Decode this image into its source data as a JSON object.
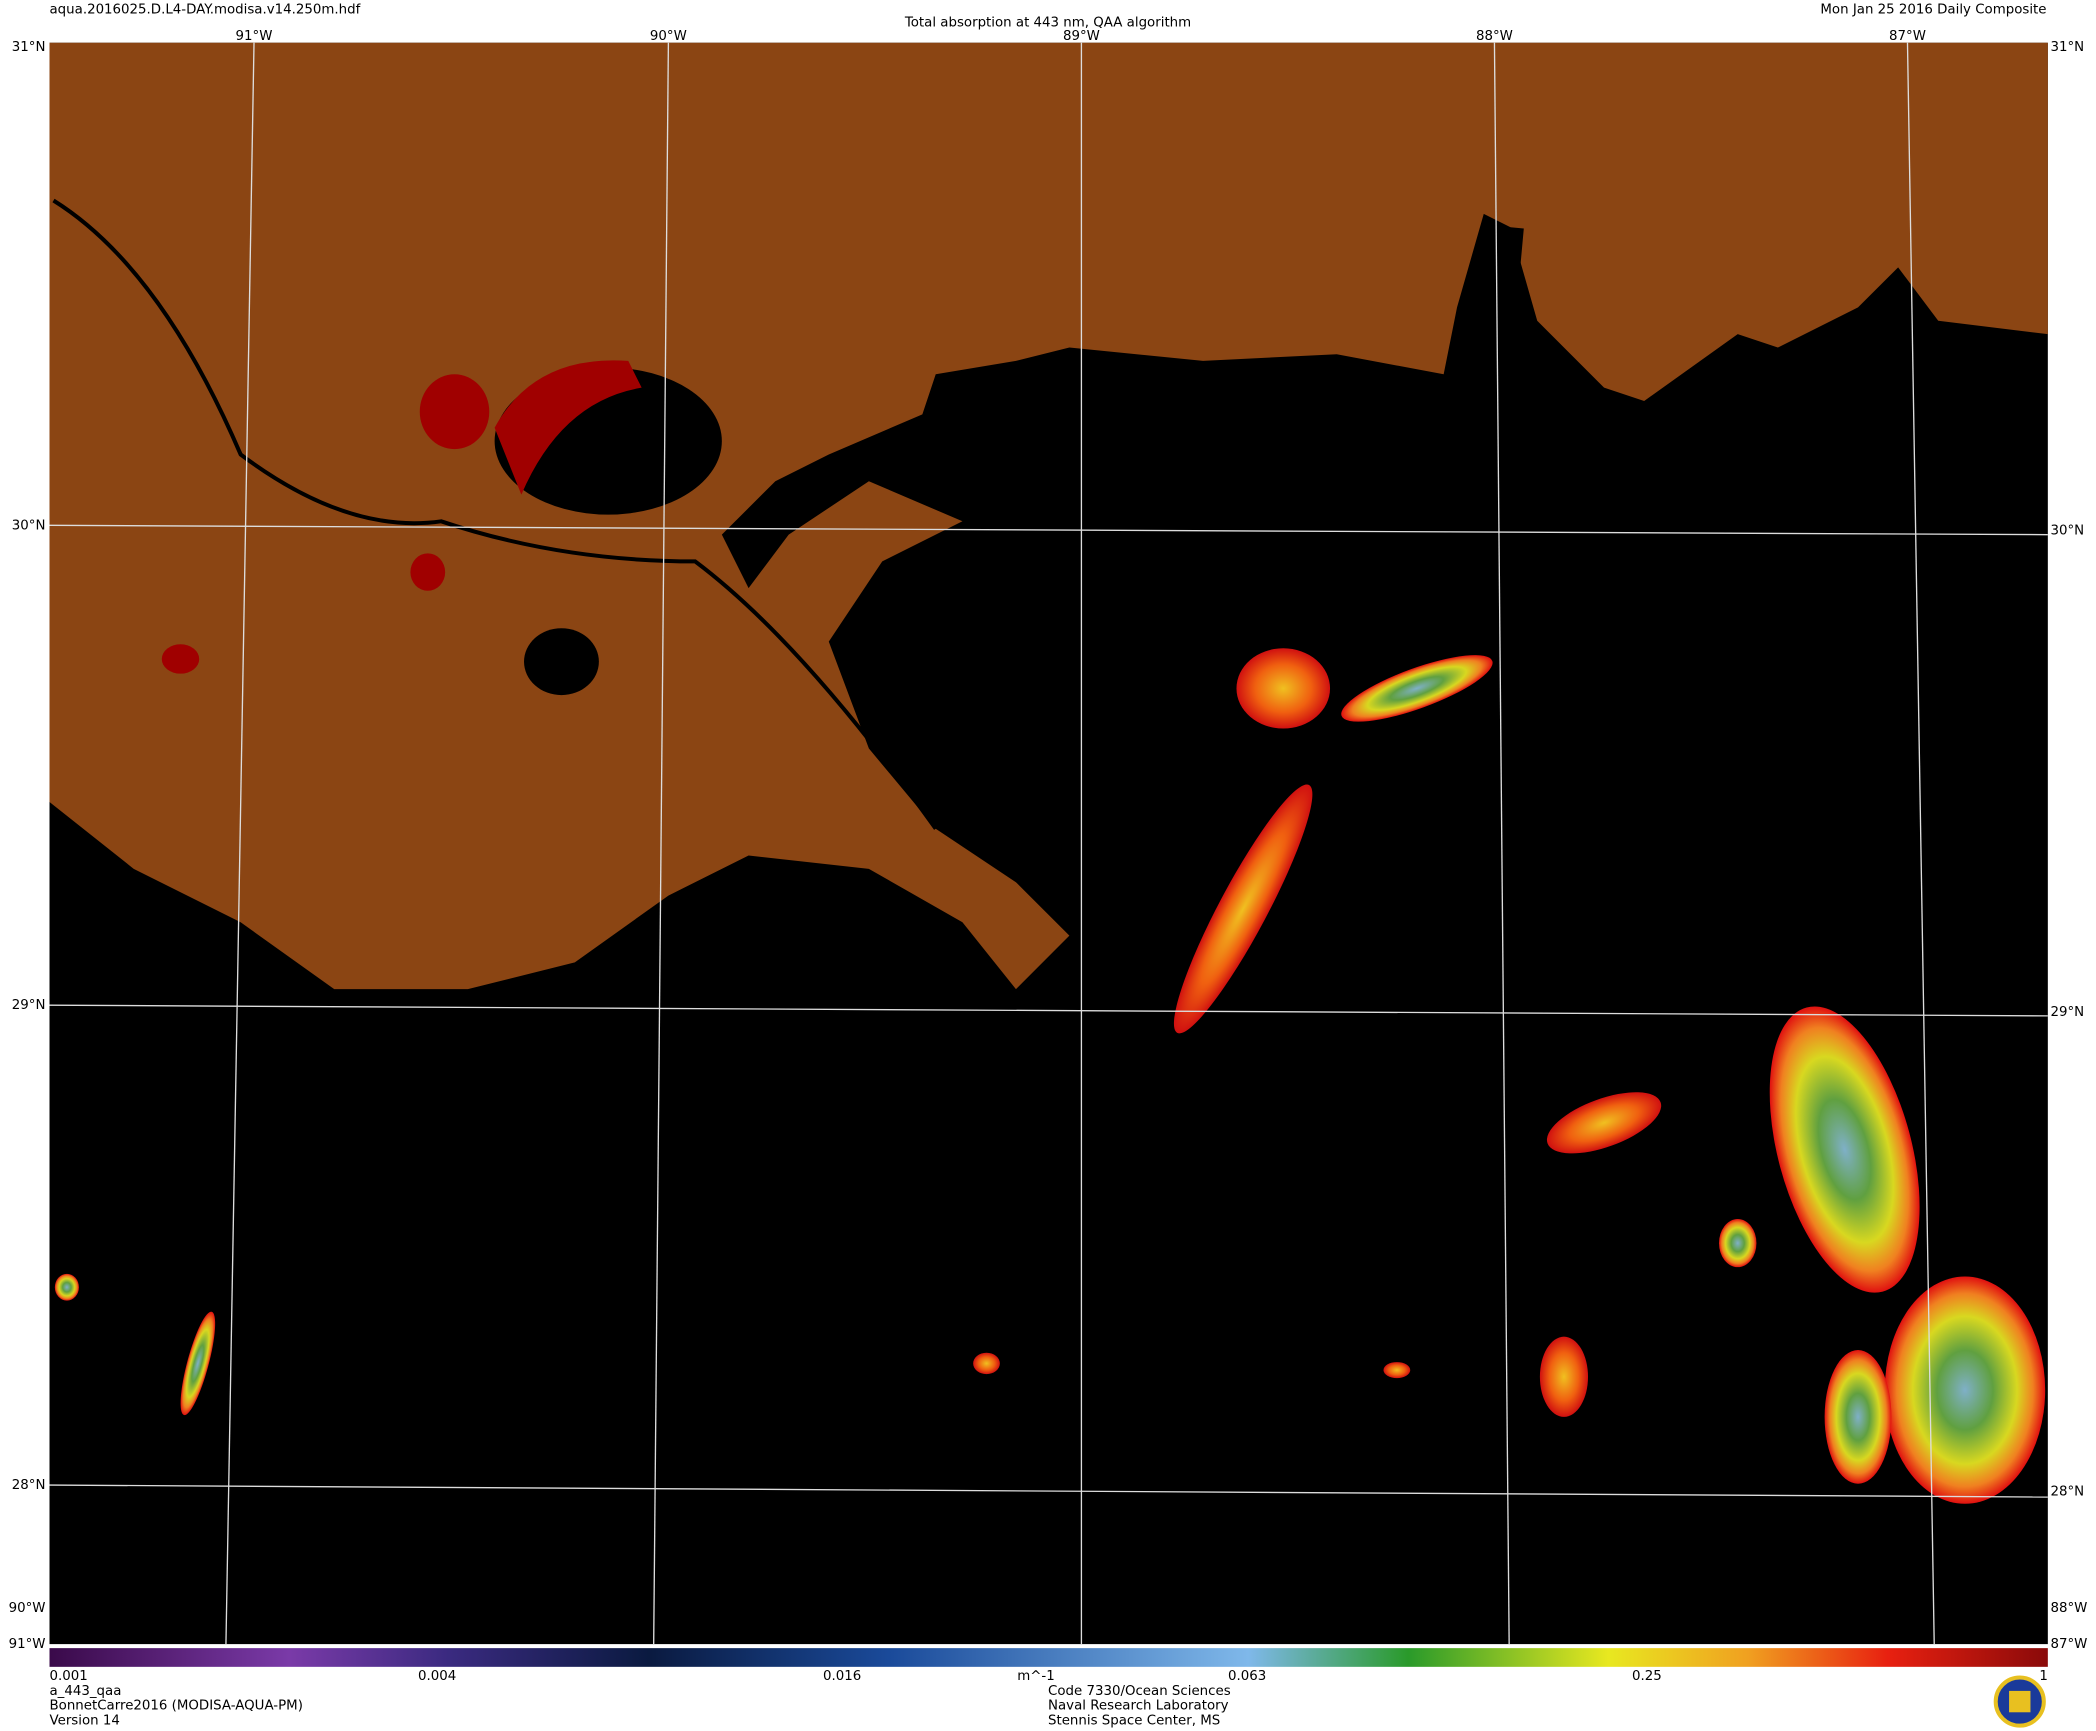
{
  "header": {
    "file": "aqua.2016025.D.L4-DAY.modisa.v14.250m.hdf",
    "title": "Total absorption at 443 nm, QAA algorithm",
    "date": "Mon Jan 25 2016 Daily Composite"
  },
  "graticule": {
    "longitudes": [
      "91°W",
      "90°W",
      "89°W",
      "88°W",
      "87°W"
    ],
    "latitudes": [
      "31°N",
      "30°N",
      "29°N",
      "28°N"
    ]
  },
  "colorbar": {
    "ticks": [
      "0.001",
      "0.004",
      "0.016",
      "m^-1",
      "0.063",
      "0.25",
      "1"
    ]
  },
  "footer": {
    "left": [
      "a_443_qaa",
      "BonnetCarre2016 (MODISA-AQUA-PM)",
      "Version 14"
    ],
    "center": [
      "Code 7330/Ocean Sciences",
      "Naval Research Laboratory",
      "Stennis Space Center, MS"
    ]
  }
}
